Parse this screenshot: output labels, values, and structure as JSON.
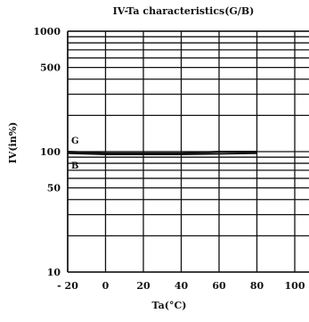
{
  "chart_data": {
    "type": "line",
    "title": "IV-Ta characteristics(G/B)",
    "xlabel": "Ta(°C)",
    "ylabel": "IV(in%)",
    "xlim": [
      -20,
      100
    ],
    "ylim": [
      10,
      1000
    ],
    "y_scale": "log",
    "x_ticks": [
      -20,
      0,
      20,
      40,
      60,
      80,
      100
    ],
    "x_tick_labels": [
      "- 20",
      "0",
      "20",
      "40",
      "60",
      "80",
      "100"
    ],
    "y_ticks": [
      10,
      50,
      100,
      500,
      1000
    ],
    "y_tick_labels": [
      "10",
      "50",
      "100",
      "500",
      "1000"
    ],
    "grid": true,
    "series": [
      {
        "name": "G",
        "x": [
          -20,
          0,
          20,
          40,
          60,
          80
        ],
        "y": [
          100,
          97,
          97,
          97,
          100,
          100
        ]
      },
      {
        "name": "B",
        "x": [
          -20,
          0,
          20,
          40,
          60,
          80
        ],
        "y": [
          97,
          95,
          95,
          95,
          96,
          97
        ]
      }
    ]
  },
  "colors": {
    "background": "#ffffff",
    "ink": "#111111",
    "grid": "#111111"
  }
}
